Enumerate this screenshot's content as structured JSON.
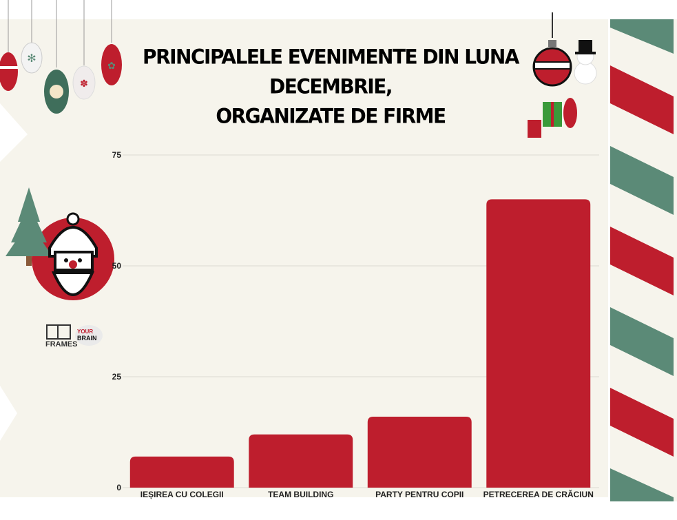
{
  "chart_data": {
    "type": "bar",
    "title_lines": [
      "PRINCIPALELE EVENIMENTE DIN LUNA",
      "DECEMBRIE,",
      "ORGANIZATE DE FIRME"
    ],
    "categories": [
      "IEȘIREA CU COLEGII",
      "TEAM BUILDING",
      "PARTY PENTRU COPII",
      "PETRECEREA DE CRĂCIUN"
    ],
    "values": [
      7,
      12,
      16,
      65
    ],
    "ylim": [
      0,
      75
    ],
    "yticks": [
      0,
      25,
      50,
      75
    ],
    "grid": true,
    "bar_color": "#be1e2d"
  },
  "logos": {
    "frames": "FRAMES",
    "brain_top": "YOUR",
    "brain_bottom": "BRAIN"
  },
  "colors": {
    "background": "#f6f4ec",
    "red": "#be1e2d",
    "green": "#5b8a77"
  }
}
